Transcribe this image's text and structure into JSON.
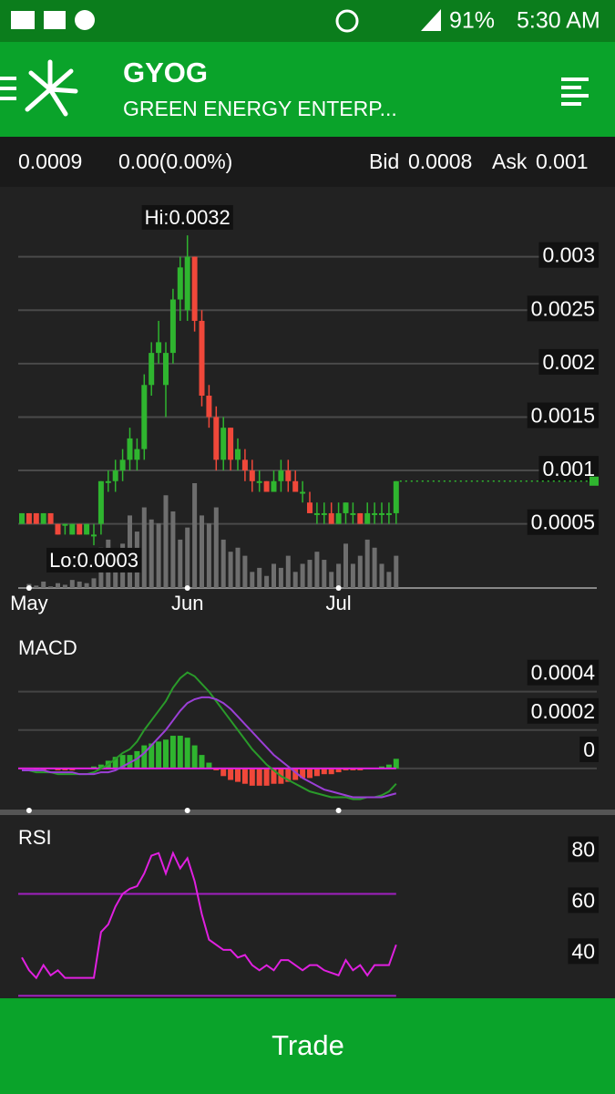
{
  "status_bar": {
    "battery": "91%",
    "time": "5:30 AM"
  },
  "header": {
    "symbol": "GYOG",
    "name": "GREEN ENERGY ENTERP..."
  },
  "quote": {
    "last": "0.0009",
    "change": "0.00(0.00%)",
    "bid_label": "Bid",
    "bid": "0.0008",
    "ask_label": "Ask",
    "ask": "0.001"
  },
  "button": {
    "label": "Trade"
  },
  "chart_data": [
    {
      "type": "candlestick",
      "categories": [
        null,
        "May",
        null,
        null,
        null,
        null,
        null,
        null,
        null,
        null,
        null,
        null,
        null,
        null,
        null,
        null,
        null,
        null,
        null,
        null,
        null,
        null,
        null,
        "Jun",
        null,
        null,
        null,
        null,
        null,
        null,
        null,
        null,
        null,
        null,
        null,
        null,
        null,
        null,
        null,
        null,
        null,
        null,
        null,
        null,
        "Jul",
        null,
        null,
        null,
        null,
        null,
        null,
        null,
        null
      ],
      "open": [
        0.0005,
        0.0006,
        0.0006,
        0.0005,
        0.0006,
        0.0005,
        0.0005,
        0.0004,
        0.0005,
        0.0004,
        0.0004,
        0.0005,
        0.0009,
        0.0009,
        0.001,
        0.0011,
        0.0011,
        0.0012,
        0.0018,
        0.0021,
        0.0018,
        0.0021,
        0.0026,
        0.0025,
        0.003,
        0.0024,
        0.0017,
        0.0015,
        0.0011,
        0.0014,
        0.0011,
        0.0011,
        0.001,
        0.0009,
        0.0009,
        0.0008,
        0.0009,
        0.001,
        0.0009,
        0.0008,
        0.0007,
        0.0006,
        0.0006,
        0.0006,
        0.0005,
        0.0006,
        0.0006,
        0.0006,
        0.0005,
        0.0006,
        0.0006,
        0.0006,
        0.0006
      ],
      "high": [
        0.0006,
        0.0006,
        0.0006,
        0.0006,
        0.0006,
        0.0005,
        0.0005,
        0.0005,
        0.0005,
        0.0005,
        0.0005,
        0.0009,
        0.001,
        0.0011,
        0.0012,
        0.0014,
        0.0013,
        0.0019,
        0.0022,
        0.0024,
        0.0022,
        0.0027,
        0.003,
        0.0032,
        0.003,
        0.0025,
        0.0018,
        0.0016,
        0.0015,
        0.0014,
        0.0013,
        0.0012,
        0.0011,
        0.001,
        0.0009,
        0.001,
        0.0011,
        0.0011,
        0.001,
        0.0009,
        0.0008,
        0.0007,
        0.0007,
        0.0007,
        0.0007,
        0.0007,
        0.0007,
        0.0006,
        0.0007,
        0.0007,
        0.0007,
        0.0007,
        0.0009
      ],
      "low": [
        0.0005,
        0.0005,
        0.0005,
        0.0005,
        0.0005,
        0.0004,
        0.0004,
        0.0004,
        0.0004,
        0.0004,
        0.0003,
        0.0004,
        0.0008,
        0.0008,
        0.0009,
        0.001,
        0.001,
        0.0011,
        0.0017,
        0.002,
        0.0015,
        0.002,
        0.0024,
        0.0024,
        0.0023,
        0.0016,
        0.0014,
        0.001,
        0.001,
        0.001,
        0.001,
        0.0009,
        0.0008,
        0.0008,
        0.0008,
        0.0008,
        0.0008,
        0.0008,
        0.0008,
        0.0007,
        0.0006,
        0.0005,
        0.0005,
        0.0005,
        0.0005,
        0.0005,
        0.0005,
        0.0005,
        0.0005,
        0.0005,
        0.0005,
        0.0005,
        0.0005
      ],
      "close": [
        0.0006,
        0.0005,
        0.0005,
        0.0006,
        0.0005,
        0.0004,
        0.0005,
        0.0005,
        0.0004,
        0.0005,
        0.0004,
        0.0009,
        0.0009,
        0.001,
        0.0011,
        0.0013,
        0.0012,
        0.0018,
        0.0021,
        0.0022,
        0.0021,
        0.0026,
        0.0029,
        0.003,
        0.0024,
        0.0017,
        0.0015,
        0.0011,
        0.0014,
        0.0011,
        0.0012,
        0.001,
        0.0009,
        0.0009,
        0.0008,
        0.0009,
        0.001,
        0.0009,
        0.0008,
        0.0008,
        0.0006,
        0.0006,
        0.0006,
        0.0005,
        0.0006,
        0.0007,
        0.0006,
        0.0005,
        0.0006,
        0.0006,
        0.0006,
        0.0006,
        0.0009
      ],
      "volume": [
        0,
        5,
        3,
        8,
        2,
        6,
        4,
        10,
        8,
        6,
        12,
        50,
        60,
        40,
        55,
        90,
        70,
        100,
        85,
        80,
        115,
        95,
        60,
        75,
        130,
        90,
        80,
        100,
        60,
        45,
        50,
        40,
        20,
        25,
        15,
        30,
        25,
        40,
        20,
        30,
        35,
        45,
        35,
        20,
        30,
        55,
        30,
        40,
        60,
        50,
        30,
        20,
        40
      ],
      "up_color": "#2fb52f",
      "down_color": "#f0483a",
      "volume_color": "#6e6e6e",
      "hi_label": "Hi:0.0032",
      "lo_label": "Lo:0.0003",
      "ylim": [
        -0.0001,
        0.0035
      ],
      "yticks": [
        0.0005,
        0.001,
        0.0015,
        0.002,
        0.0025,
        0.003
      ],
      "grid": true
    },
    {
      "type": "macd",
      "title": "MACD",
      "macd_line": [
        -1e-05,
        -1e-05,
        -2e-05,
        -2e-05,
        -2e-05,
        -3e-05,
        -3e-05,
        -3e-05,
        -3e-05,
        -3e-05,
        -2e-05,
        0.0,
        2e-05,
        5e-05,
        8e-05,
        0.0001,
        0.00014,
        0.0002,
        0.00025,
        0.0003,
        0.00035,
        0.00042,
        0.00047,
        0.0005,
        0.00048,
        0.00044,
        0.0004,
        0.00035,
        0.0003,
        0.00025,
        0.0002,
        0.00015,
        0.0001,
        6e-05,
        2e-05,
        -1e-05,
        -4e-05,
        -6e-05,
        -8e-05,
        -0.0001,
        -0.00012,
        -0.00013,
        -0.00014,
        -0.00015,
        -0.00015,
        -0.00015,
        -0.00016,
        -0.00016,
        -0.00015,
        -0.00015,
        -0.00014,
        -0.00012,
        -8e-05
      ],
      "signal_line": [
        -1e-05,
        -1e-05,
        -1e-05,
        -1e-05,
        -2e-05,
        -2e-05,
        -2e-05,
        -2e-05,
        -3e-05,
        -3e-05,
        -3e-05,
        -2e-05,
        -2e-05,
        -1e-05,
        1e-05,
        3e-05,
        5e-05,
        8e-05,
        0.00012,
        0.00016,
        0.0002,
        0.00025,
        0.0003,
        0.00034,
        0.00036,
        0.00037,
        0.00037,
        0.00036,
        0.00034,
        0.00031,
        0.00027,
        0.00023,
        0.00019,
        0.00015,
        0.00011,
        7e-05,
        4e-05,
        1e-05,
        -2e-05,
        -5e-05,
        -7e-05,
        -9e-05,
        -0.00011,
        -0.00012,
        -0.00013,
        -0.00014,
        -0.00015,
        -0.00015,
        -0.00015,
        -0.00015,
        -0.00015,
        -0.00014,
        -0.00013
      ],
      "histogram": [
        0,
        0,
        -1e-05,
        -1e-05,
        0,
        -1e-05,
        -1e-05,
        -1e-05,
        0,
        0,
        1e-05,
        2e-05,
        4e-05,
        6e-05,
        7e-05,
        7e-05,
        9e-05,
        0.00012,
        0.00013,
        0.00014,
        0.00015,
        0.00017,
        0.00017,
        0.00016,
        0.00012,
        7e-05,
        3e-05,
        -1e-05,
        -4e-05,
        -6e-05,
        -7e-05,
        -8e-05,
        -9e-05,
        -9e-05,
        -9e-05,
        -8e-05,
        -8e-05,
        -7e-05,
        -6e-05,
        -5e-05,
        -5e-05,
        -4e-05,
        -3e-05,
        -3e-05,
        -2e-05,
        -1e-05,
        -1e-05,
        -1e-05,
        0,
        0,
        1e-05,
        2e-05,
        5e-05
      ],
      "macd_color": "#2a9a2a",
      "signal_color": "#9b3fd6",
      "zero_color": "#e020e0",
      "up_color": "#2fb52f",
      "down_color": "#f0483a",
      "ylim": [
        -0.0002,
        0.00055
      ],
      "yticks": [
        0,
        0.0002,
        0.0004
      ],
      "grid": true
    },
    {
      "type": "rsi",
      "title": "RSI",
      "values": [
        45,
        40,
        37,
        42,
        38,
        40,
        37,
        37,
        37,
        37,
        37,
        55,
        58,
        65,
        70,
        72,
        73,
        78,
        85,
        86,
        78,
        86,
        80,
        84,
        75,
        62,
        52,
        50,
        48,
        48,
        45,
        46,
        42,
        40,
        42,
        40,
        44,
        44,
        42,
        40,
        42,
        42,
        40,
        39,
        38,
        44,
        40,
        42,
        38,
        42,
        42,
        42,
        50
      ],
      "color": "#e020e0",
      "levels": [
        30,
        70
      ],
      "level_color": "#a020c0",
      "ylim": [
        29,
        97
      ],
      "yticks": [
        40,
        60,
        80
      ],
      "grid": false
    }
  ]
}
